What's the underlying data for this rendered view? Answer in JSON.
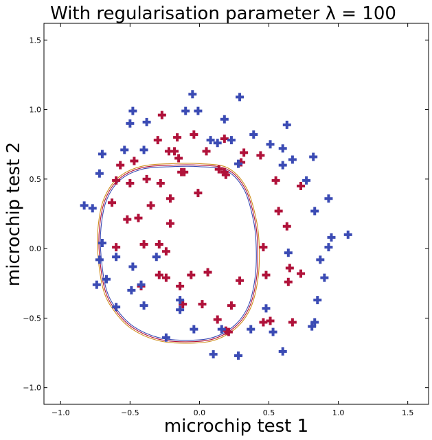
{
  "chart_data": {
    "type": "scatter",
    "title": "With regularisation parameter λ = 100",
    "xlabel": "microchip test 1",
    "ylabel": "microchip test 2",
    "xlim": [
      -1.12,
      1.65
    ],
    "ylim": [
      -1.12,
      1.62
    ],
    "xticks": [
      -1.0,
      -0.5,
      0.0,
      0.5,
      1.0,
      1.5
    ],
    "xtick_labels": [
      "−1.0",
      "−0.5",
      "0.0",
      "0.5",
      "1.0",
      "1.5"
    ],
    "yticks": [
      -1.0,
      -0.5,
      0.0,
      0.5,
      1.0,
      1.5
    ],
    "ytick_labels": [
      "−1.0",
      "−0.5",
      "0.0",
      "0.5",
      "1.0",
      "1.5"
    ],
    "grid": false,
    "marker": "plus",
    "series": [
      {
        "color": "#b0123a",
        "points": [
          [
            -0.57,
            0.6
          ],
          [
            -0.47,
            0.63
          ],
          [
            -0.3,
            0.78
          ],
          [
            -0.27,
            0.96
          ],
          [
            -0.22,
            0.7
          ],
          [
            -0.18,
            0.7
          ],
          [
            -0.16,
            0.8
          ],
          [
            -0.15,
            0.65
          ],
          [
            -0.04,
            0.82
          ],
          [
            0.05,
            0.7
          ],
          [
            0.18,
            0.79
          ],
          [
            0.14,
            0.57
          ],
          [
            0.18,
            0.55
          ],
          [
            0.19,
            0.53
          ],
          [
            0.3,
            0.62
          ],
          [
            0.32,
            0.69
          ],
          [
            0.44,
            0.67
          ],
          [
            -0.13,
            0.55
          ],
          [
            -0.11,
            0.55
          ],
          [
            -0.38,
            0.5
          ],
          [
            -0.28,
            0.47
          ],
          [
            -0.6,
            0.49
          ],
          [
            -0.63,
            0.33
          ],
          [
            -0.5,
            0.47
          ],
          [
            -0.35,
            0.31
          ],
          [
            -0.21,
            0.36
          ],
          [
            -0.01,
            0.4
          ],
          [
            -0.52,
            0.21
          ],
          [
            -0.44,
            0.22
          ],
          [
            -0.21,
            0.18
          ],
          [
            -0.6,
            0.01
          ],
          [
            -0.4,
            0.03
          ],
          [
            -0.29,
            0.03
          ],
          [
            -0.24,
            -0.02
          ],
          [
            -0.29,
            -0.19
          ],
          [
            -0.24,
            -0.21
          ],
          [
            -0.42,
            -0.27
          ],
          [
            -0.14,
            -0.27
          ],
          [
            -0.06,
            -0.19
          ],
          [
            0.06,
            -0.17
          ],
          [
            0.29,
            -0.23
          ],
          [
            -0.12,
            -0.4
          ],
          [
            0.02,
            -0.4
          ],
          [
            0.23,
            -0.41
          ],
          [
            0.13,
            -0.51
          ],
          [
            0.19,
            -0.59
          ],
          [
            0.21,
            -0.6
          ],
          [
            0.46,
            -0.53
          ],
          [
            0.51,
            -0.52
          ],
          [
            0.46,
            0.01
          ],
          [
            0.48,
            -0.19
          ],
          [
            0.55,
            0.49
          ],
          [
            0.57,
            0.27
          ],
          [
            0.63,
            0.16
          ],
          [
            0.65,
            -0.14
          ],
          [
            0.64,
            -0.24
          ],
          [
            0.73,
            -0.18
          ],
          [
            0.67,
            -0.53
          ],
          [
            0.73,
            0.45
          ]
        ]
      },
      {
        "color": "#3b4bb4",
        "points": [
          [
            -0.83,
            0.31
          ],
          [
            -0.77,
            0.29
          ],
          [
            -0.72,
            0.54
          ],
          [
            -0.7,
            0.68
          ],
          [
            -0.7,
            0.04
          ],
          [
            -0.72,
            -0.08
          ],
          [
            -0.74,
            -0.26
          ],
          [
            -0.67,
            -0.22
          ],
          [
            -0.6,
            -0.06
          ],
          [
            -0.6,
            -0.42
          ],
          [
            -0.48,
            -0.13
          ],
          [
            -0.49,
            -0.3
          ],
          [
            -0.42,
            -0.26
          ],
          [
            -0.4,
            -0.41
          ],
          [
            -0.54,
            0.71
          ],
          [
            -0.48,
            0.99
          ],
          [
            -0.5,
            0.9
          ],
          [
            -0.38,
            0.91
          ],
          [
            -0.4,
            0.71
          ],
          [
            -0.1,
            0.99
          ],
          [
            -0.05,
            1.11
          ],
          [
            -0.01,
            0.99
          ],
          [
            0.08,
            0.78
          ],
          [
            0.13,
            0.76
          ],
          [
            0.18,
            0.93
          ],
          [
            0.23,
            0.78
          ],
          [
            0.29,
            1.09
          ],
          [
            0.28,
            0.61
          ],
          [
            0.39,
            0.82
          ],
          [
            0.51,
            0.75
          ],
          [
            0.6,
            0.72
          ],
          [
            0.63,
            0.89
          ],
          [
            0.67,
            0.64
          ],
          [
            0.6,
            0.6
          ],
          [
            0.77,
            0.49
          ],
          [
            0.82,
            0.66
          ],
          [
            0.83,
            0.27
          ],
          [
            0.93,
            0.36
          ],
          [
            0.95,
            0.08
          ],
          [
            0.93,
            0.01
          ],
          [
            1.07,
            0.1
          ],
          [
            0.64,
            -0.03
          ],
          [
            0.87,
            -0.08
          ],
          [
            0.9,
            -0.21
          ],
          [
            0.85,
            -0.37
          ],
          [
            0.83,
            -0.53
          ],
          [
            0.81,
            -0.56
          ],
          [
            0.6,
            -0.74
          ],
          [
            0.53,
            -0.6
          ],
          [
            0.37,
            -0.58
          ],
          [
            0.48,
            -0.43
          ],
          [
            0.28,
            -0.77
          ],
          [
            0.1,
            -0.76
          ],
          [
            0.16,
            -0.58
          ],
          [
            -0.04,
            -0.58
          ],
          [
            -0.24,
            -0.64
          ],
          [
            -0.14,
            -0.44
          ],
          [
            -0.14,
            -0.37
          ],
          [
            -0.31,
            -0.06
          ]
        ]
      }
    ],
    "decision_boundary": {
      "colors": [
        "#3b4bb4",
        "#b0123a",
        "#d09020"
      ],
      "points": [
        [
          0.42,
          0.0
        ],
        [
          0.4,
          0.2
        ],
        [
          0.33,
          0.43
        ],
        [
          0.2,
          0.57
        ],
        [
          0.0,
          0.6
        ],
        [
          -0.2,
          0.6
        ],
        [
          -0.42,
          0.58
        ],
        [
          -0.58,
          0.5
        ],
        [
          -0.68,
          0.35
        ],
        [
          -0.72,
          0.15
        ],
        [
          -0.72,
          -0.05
        ],
        [
          -0.68,
          -0.3
        ],
        [
          -0.6,
          -0.45
        ],
        [
          -0.48,
          -0.57
        ],
        [
          -0.3,
          -0.65
        ],
        [
          -0.1,
          -0.67
        ],
        [
          0.1,
          -0.65
        ],
        [
          0.26,
          -0.56
        ],
        [
          0.36,
          -0.42
        ],
        [
          0.41,
          -0.22
        ],
        [
          0.42,
          0.0
        ]
      ]
    }
  }
}
